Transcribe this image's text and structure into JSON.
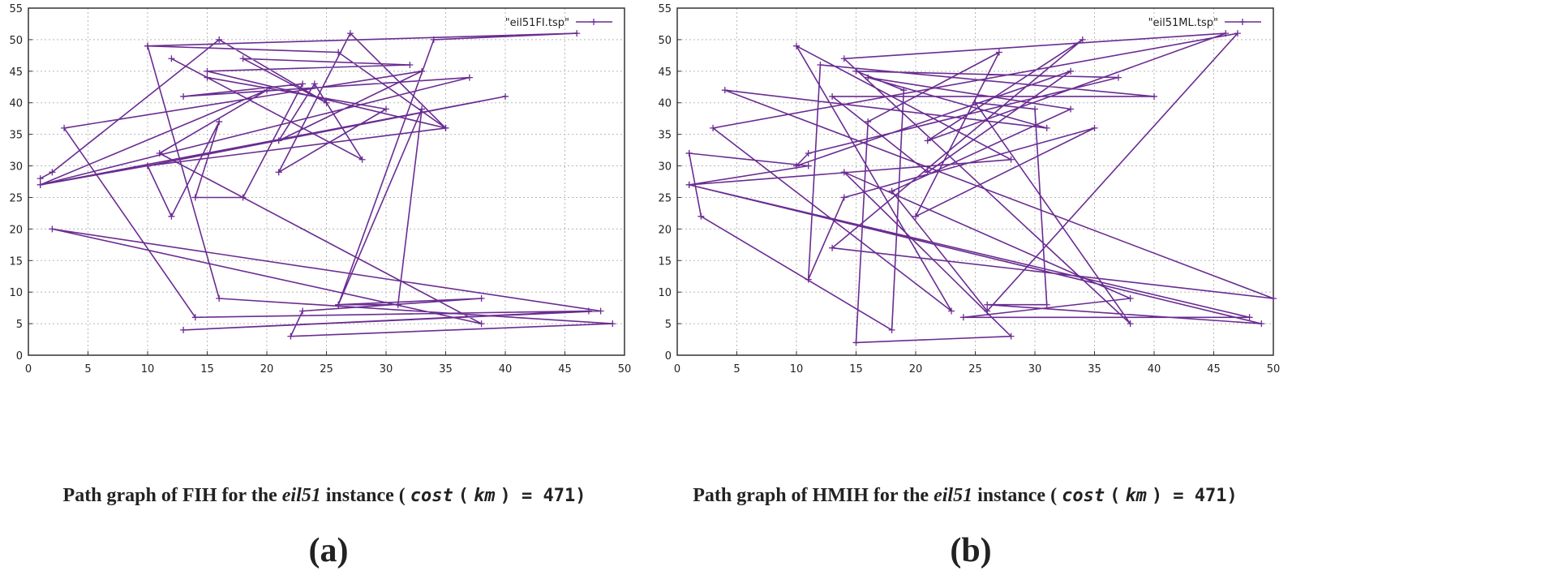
{
  "colors": {
    "line": "#6a2c91",
    "axis": "#333333",
    "grid": "#b8b8b8"
  },
  "chart_data": [
    {
      "type": "line",
      "legend_label": "\"eil51FI.tsp\"",
      "legend_position": "top-right",
      "grid": true,
      "xlim": [
        0,
        50
      ],
      "ylim": [
        0,
        55
      ],
      "xticks": [
        0,
        5,
        10,
        15,
        20,
        25,
        30,
        35,
        40,
        45,
        50
      ],
      "yticks": [
        0,
        5,
        10,
        15,
        20,
        25,
        30,
        35,
        40,
        45,
        50,
        55
      ],
      "caption": {
        "pre": "Path graph of FIH for the",
        "italic": "eil51",
        "mid": "instance (",
        "cost": "cost",
        "unit": "km",
        "post": ") = 471)"
      },
      "sublabel": "(a)",
      "series": [
        {
          "points": [
            [
              1,
              28
            ],
            [
              2,
              29
            ],
            [
              16,
              50
            ],
            [
              25,
              40
            ],
            [
              18,
              47
            ],
            [
              32,
              46
            ],
            [
              15,
              45
            ],
            [
              35,
              36
            ],
            [
              27,
              51
            ],
            [
              21,
              29
            ],
            [
              30,
              39
            ],
            [
              15,
              44
            ],
            [
              12,
              47
            ],
            [
              28,
              31
            ],
            [
              24,
              43
            ],
            [
              21,
              34
            ],
            [
              33,
              45
            ],
            [
              3,
              36
            ],
            [
              14,
              6
            ],
            [
              47,
              7
            ],
            [
              13,
              4
            ],
            [
              48,
              7
            ],
            [
              2,
              20
            ],
            [
              38,
              5
            ],
            [
              11,
              32
            ],
            [
              20,
              42
            ],
            [
              1,
              27
            ],
            [
              10,
              30
            ],
            [
              12,
              22
            ],
            [
              16,
              37
            ],
            [
              14,
              25
            ],
            [
              18,
              25
            ],
            [
              23,
              43
            ],
            [
              13,
              41
            ],
            [
              37,
              44
            ],
            [
              1,
              27
            ],
            [
              40,
              41
            ],
            [
              10,
              30
            ],
            [
              35,
              36
            ],
            [
              26,
              48
            ],
            [
              10,
              49
            ],
            [
              46,
              51
            ],
            [
              34,
              50
            ],
            [
              26,
              8
            ],
            [
              33,
              39
            ],
            [
              31,
              8
            ],
            [
              26,
              8
            ],
            [
              38,
              9
            ],
            [
              23,
              7
            ],
            [
              22,
              3
            ],
            [
              49,
              5
            ],
            [
              16,
              9
            ],
            [
              10,
              49
            ]
          ]
        }
      ]
    },
    {
      "type": "line",
      "legend_label": "\"eil51ML.tsp\"",
      "legend_position": "top-right",
      "grid": true,
      "xlim": [
        0,
        50
      ],
      "ylim": [
        0,
        55
      ],
      "xticks": [
        0,
        5,
        10,
        15,
        20,
        25,
        30,
        35,
        40,
        45,
        50
      ],
      "yticks": [
        0,
        5,
        10,
        15,
        20,
        25,
        30,
        35,
        40,
        45,
        50,
        55
      ],
      "caption": {
        "pre": "Path graph of HMIH for the",
        "italic": "eil51",
        "mid": "instance (",
        "cost": "cost",
        "unit": "km",
        "post": ") = 471)"
      },
      "sublabel": "(b)",
      "series": [
        {
          "points": [
            [
              1,
              32
            ],
            [
              2,
              22
            ],
            [
              18,
              4
            ],
            [
              19,
              42
            ],
            [
              15,
              45
            ],
            [
              37,
              44
            ],
            [
              11,
              32
            ],
            [
              10,
              30
            ],
            [
              33,
              45
            ],
            [
              21,
              29
            ],
            [
              13,
              41
            ],
            [
              40,
              41
            ],
            [
              12,
              46
            ],
            [
              11,
              12
            ],
            [
              14,
              25
            ],
            [
              35,
              36
            ],
            [
              20,
              22
            ],
            [
              27,
              48
            ],
            [
              16,
              37
            ],
            [
              15,
              2
            ],
            [
              28,
              3
            ],
            [
              14,
              29
            ],
            [
              38,
              9
            ],
            [
              24,
              6
            ],
            [
              48,
              6
            ],
            [
              1,
              27
            ],
            [
              49,
              5
            ],
            [
              26,
              8
            ],
            [
              31,
              8
            ],
            [
              30,
              39
            ],
            [
              25,
              40
            ],
            [
              38,
              5
            ],
            [
              14,
              47
            ],
            [
              46,
              51
            ],
            [
              21,
              34
            ],
            [
              34,
              50
            ],
            [
              13,
              17
            ],
            [
              50,
              9
            ],
            [
              4,
              42
            ],
            [
              31,
              36
            ],
            [
              16,
              44
            ],
            [
              33,
              39
            ],
            [
              18,
              26
            ],
            [
              26,
              7
            ],
            [
              47,
              51
            ],
            [
              3,
              36
            ],
            [
              23,
              7
            ],
            [
              10,
              49
            ],
            [
              28,
              31
            ],
            [
              1,
              27
            ],
            [
              11,
              30
            ],
            [
              1,
              32
            ]
          ]
        }
      ]
    }
  ]
}
